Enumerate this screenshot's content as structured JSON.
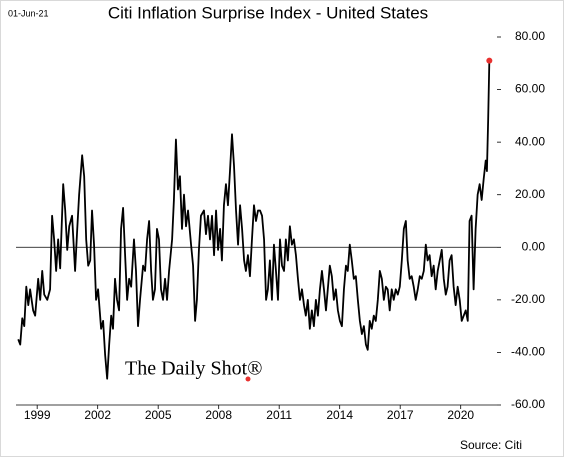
{
  "chart_data": {
    "type": "line",
    "title": "Citi Inflation Surprise Index - United States",
    "date": "01-Jun-21",
    "watermark": "The Daily Shot®",
    "source": "Source: Citi",
    "x": [
      1998.06,
      1998.16,
      1998.26,
      1998.36,
      1998.46,
      1998.56,
      1998.65,
      1998.8,
      1998.9,
      1999.05,
      1999.15,
      1999.25,
      1999.35,
      1999.5,
      1999.64,
      1999.74,
      1999.84,
      1999.94,
      2000.04,
      2000.14,
      2000.29,
      2000.39,
      2000.49,
      2000.59,
      2000.73,
      2000.88,
      2000.98,
      2001.08,
      2001.23,
      2001.33,
      2001.43,
      2001.53,
      2001.63,
      2001.72,
      2001.82,
      2001.92,
      2002.02,
      2002.17,
      2002.27,
      2002.37,
      2002.47,
      2002.57,
      2002.67,
      2002.76,
      2002.86,
      2002.96,
      2003.06,
      2003.16,
      2003.26,
      2003.36,
      2003.46,
      2003.56,
      2003.66,
      2003.8,
      2003.9,
      2004,
      2004.1,
      2004.25,
      2004.35,
      2004.45,
      2004.55,
      2004.65,
      2004.74,
      2004.84,
      2004.94,
      2005.04,
      2005.14,
      2005.24,
      2005.34,
      2005.44,
      2005.54,
      2005.69,
      2005.78,
      2005.88,
      2005.98,
      2006.08,
      2006.18,
      2006.28,
      2006.38,
      2006.48,
      2006.63,
      2006.73,
      2006.83,
      2006.92,
      2007.02,
      2007.12,
      2007.27,
      2007.37,
      2007.47,
      2007.57,
      2007.67,
      2007.77,
      2007.87,
      2007.97,
      2008.07,
      2008.16,
      2008.26,
      2008.36,
      2008.46,
      2008.56,
      2008.66,
      2008.76,
      2008.86,
      2008.96,
      2009.06,
      2009.16,
      2009.26,
      2009.35,
      2009.45,
      2009.55,
      2009.65,
      2009.75,
      2009.85,
      2009.95,
      2010.05,
      2010.15,
      2010.25,
      2010.35,
      2010.44,
      2010.54,
      2010.64,
      2010.74,
      2010.84,
      2010.94,
      2011.04,
      2011.14,
      2011.24,
      2011.33,
      2011.43,
      2011.53,
      2011.63,
      2011.73,
      2011.83,
      2011.93,
      2012.03,
      2012.13,
      2012.23,
      2012.32,
      2012.42,
      2012.52,
      2012.62,
      2012.72,
      2012.82,
      2012.92,
      2013.02,
      2013.12,
      2013.22,
      2013.32,
      2013.41,
      2013.51,
      2013.61,
      2013.71,
      2013.81,
      2013.91,
      2014.01,
      2014.11,
      2014.21,
      2014.31,
      2014.4,
      2014.5,
      2014.6,
      2014.7,
      2014.8,
      2014.9,
      2015,
      2015.1,
      2015.2,
      2015.3,
      2015.39,
      2015.49,
      2015.59,
      2015.69,
      2015.79,
      2015.89,
      2015.99,
      2016.09,
      2016.19,
      2016.29,
      2016.38,
      2016.48,
      2016.58,
      2016.68,
      2016.78,
      2016.88,
      2016.98,
      2017.08,
      2017.18,
      2017.28,
      2017.37,
      2017.47,
      2017.57,
      2017.67,
      2017.77,
      2017.87,
      2017.97,
      2018.07,
      2018.17,
      2018.27,
      2018.36,
      2018.46,
      2018.56,
      2018.66,
      2018.76,
      2018.86,
      2018.96,
      2019.06,
      2019.16,
      2019.26,
      2019.35,
      2019.45,
      2019.55,
      2019.65,
      2019.75,
      2019.85,
      2019.95,
      2020.05,
      2020.15,
      2020.25,
      2020.35,
      2020.44,
      2020.54,
      2020.64,
      2020.74,
      2020.84,
      2020.94,
      2021.04,
      2021.14,
      2021.24,
      2021.3,
      2021.36,
      2021.42
    ],
    "series": [
      {
        "color": "#000000",
        "last_point_color": "#e8312f",
        "values": [
          -35,
          -37,
          -27,
          -30,
          -15,
          -22,
          -16,
          -24,
          -26,
          -12,
          -20,
          -9,
          -18,
          -20,
          -16,
          12,
          3,
          -9,
          3,
          -8,
          24,
          14,
          -1,
          8,
          12,
          -9,
          6,
          20,
          35,
          27,
          3,
          -7,
          -5,
          14,
          1,
          -20,
          -16,
          -31,
          -28,
          -41,
          -50,
          -37,
          -26,
          -31,
          -12,
          -20,
          -24,
          7,
          15,
          -3,
          -20,
          -12,
          -15,
          3,
          -9,
          -30,
          -20,
          -7,
          -9,
          3,
          10,
          -9,
          -20,
          -16,
          7,
          3,
          -16,
          -20,
          -12,
          -20,
          -9,
          3,
          18,
          41,
          22,
          27,
          7,
          20,
          8,
          14,
          1,
          -7,
          -28,
          -20,
          -1,
          12,
          14,
          5,
          12,
          3,
          12,
          -3,
          14,
          -1,
          7,
          -5,
          16,
          24,
          16,
          29,
          43,
          31,
          14,
          1,
          16,
          7,
          -5,
          -9,
          -3,
          -11,
          3,
          16,
          10,
          14,
          14,
          12,
          3,
          -20,
          -16,
          -5,
          -20,
          1,
          -9,
          -20,
          3,
          -7,
          -9,
          3,
          -5,
          8,
          1,
          3,
          -3,
          -12,
          -20,
          -16,
          -22,
          -26,
          -20,
          -31,
          -24,
          -30,
          -20,
          -26,
          -16,
          -9,
          -16,
          -24,
          -16,
          -7,
          -11,
          -20,
          -16,
          -24,
          -28,
          -30,
          -16,
          -7,
          -9,
          1,
          -5,
          -12,
          -11,
          -20,
          -28,
          -33,
          -30,
          -37,
          -39,
          -28,
          -31,
          -26,
          -28,
          -20,
          -9,
          -12,
          -20,
          -15,
          -16,
          -24,
          -16,
          -20,
          -16,
          -18,
          -15,
          -5,
          7,
          10,
          -5,
          -12,
          -11,
          -15,
          -20,
          -16,
          -11,
          -12,
          -9,
          1,
          -5,
          -3,
          -11,
          -7,
          -16,
          -9,
          -5,
          -1,
          -12,
          -18,
          -15,
          -5,
          -3,
          -15,
          -22,
          -15,
          -20,
          -28,
          -26,
          -24,
          -28,
          10,
          12,
          -16,
          7,
          20,
          24,
          18,
          26,
          33,
          29,
          48,
          71
        ]
      }
    ],
    "xlim": [
      1997.95,
      2021.8
    ],
    "xticks": [
      1999,
      2002,
      2005,
      2008,
      2011,
      2014,
      2017,
      2020
    ],
    "ylim": [
      -60,
      80
    ],
    "yticks": [
      {
        "value": -60,
        "label": "-60.00"
      },
      {
        "value": -40,
        "label": "-40.00"
      },
      {
        "value": -20,
        "label": "-20.00"
      },
      {
        "value": 0,
        "label": "0.00"
      },
      {
        "value": 20,
        "label": "20.00"
      },
      {
        "value": 40,
        "label": "40.00"
      },
      {
        "value": 60,
        "label": "60.00"
      },
      {
        "value": 80,
        "label": "80.00"
      }
    ],
    "zero_line": true
  }
}
